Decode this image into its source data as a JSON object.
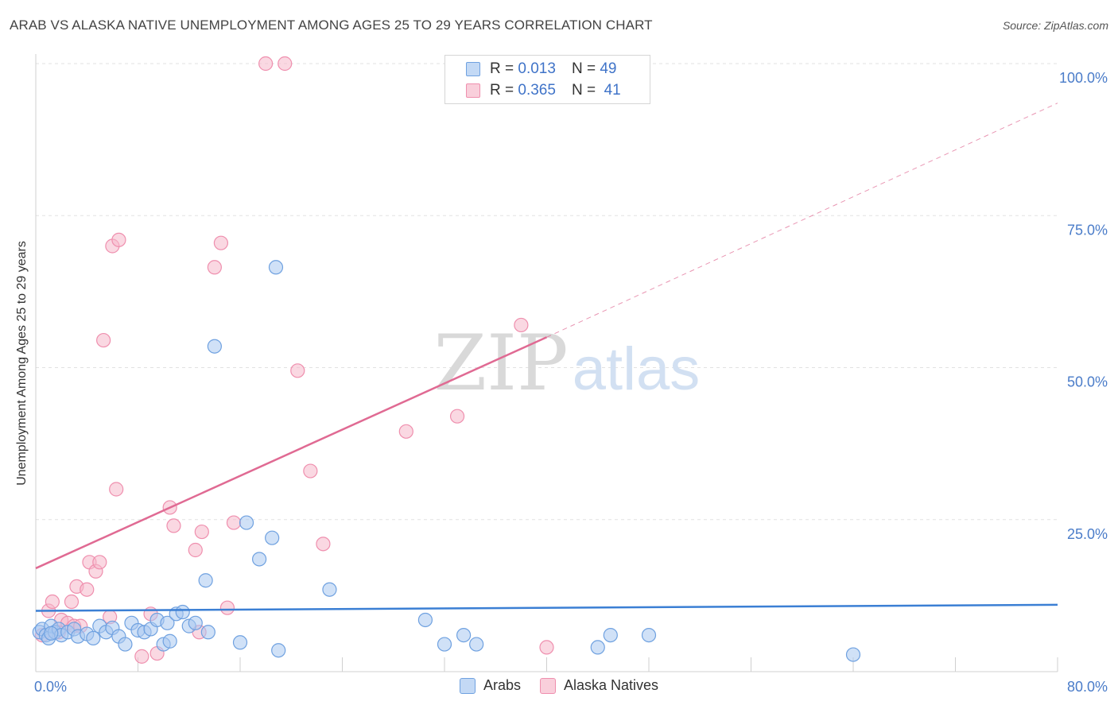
{
  "header": {
    "title": "ARAB VS ALASKA NATIVE UNEMPLOYMENT AMONG AGES 25 TO 29 YEARS CORRELATION CHART",
    "source": "Source: ZipAtlas.com"
  },
  "watermark": {
    "zip": "ZIP",
    "atlas": "atlas"
  },
  "legend": {
    "rows": [
      {
        "r_label": "R =",
        "r_value": "0.013",
        "n_label": "N =",
        "n_value": "49",
        "color": "#a9c8f0"
      },
      {
        "r_label": "R =",
        "r_value": "0.365",
        "n_label": "N =",
        "n_value": "41",
        "color": "#f6b8cb"
      }
    ]
  },
  "bottom_legend": {
    "items": [
      {
        "label": "Arabs",
        "color": "#a9c8f0"
      },
      {
        "label": "Alaska Natives",
        "color": "#f6b8cb"
      }
    ]
  },
  "chart_data": {
    "type": "scatter",
    "title": "ARAB VS ALASKA NATIVE UNEMPLOYMENT AMONG AGES 25 TO 29 YEARS CORRELATION CHART",
    "xlabel": "",
    "ylabel": "Unemployment Among Ages 25 to 29 years",
    "xlim": [
      0,
      80
    ],
    "ylim": [
      0,
      100
    ],
    "x_tick_labels": [
      "0.0%",
      "80.0%"
    ],
    "y_ticks": [
      25,
      50,
      75,
      100
    ],
    "y_tick_labels": [
      "25.0%",
      "50.0%",
      "75.0%",
      "100.0%"
    ],
    "grid": true,
    "legend_position": "top-center",
    "series": [
      {
        "name": "Arabs",
        "color": "#6fa1e0",
        "fill": "#a9c8f0",
        "trend": {
          "x": [
            0,
            80
          ],
          "y": [
            10.0,
            11.0
          ],
          "style": "solid",
          "color": "#3b7fd4"
        },
        "points": [
          [
            0.3,
            6.5
          ],
          [
            0.5,
            7.0
          ],
          [
            0.8,
            6.0
          ],
          [
            1.0,
            5.5
          ],
          [
            1.2,
            7.5
          ],
          [
            1.5,
            6.5
          ],
          [
            1.8,
            7.0
          ],
          [
            2.0,
            6.0
          ],
          [
            2.5,
            6.5
          ],
          [
            3.0,
            7.0
          ],
          [
            3.3,
            5.8
          ],
          [
            4.0,
            6.2
          ],
          [
            4.5,
            5.5
          ],
          [
            5.0,
            7.5
          ],
          [
            5.5,
            6.5
          ],
          [
            6.0,
            7.2
          ],
          [
            6.5,
            5.8
          ],
          [
            7.0,
            4.5
          ],
          [
            7.5,
            8.0
          ],
          [
            8.0,
            6.8
          ],
          [
            8.5,
            6.5
          ],
          [
            9.0,
            7.0
          ],
          [
            9.5,
            8.5
          ],
          [
            10.0,
            4.5
          ],
          [
            10.5,
            5.0
          ],
          [
            10.3,
            8.0
          ],
          [
            11.0,
            9.5
          ],
          [
            11.5,
            9.8
          ],
          [
            12.0,
            7.5
          ],
          [
            12.5,
            8.0
          ],
          [
            13.5,
            6.5
          ],
          [
            13.3,
            15.0
          ],
          [
            14.0,
            53.5
          ],
          [
            16.0,
            4.8
          ],
          [
            16.5,
            24.5
          ],
          [
            17.5,
            18.5
          ],
          [
            18.5,
            22.0
          ],
          [
            19.0,
            3.5
          ],
          [
            18.8,
            66.5
          ],
          [
            23.0,
            13.5
          ],
          [
            30.5,
            8.5
          ],
          [
            32.0,
            4.5
          ],
          [
            33.5,
            6.0
          ],
          [
            34.5,
            4.5
          ],
          [
            44.0,
            4.0
          ],
          [
            45.0,
            6.0
          ],
          [
            48.0,
            6.0
          ],
          [
            64.0,
            2.8
          ],
          [
            1.2,
            6.3
          ]
        ]
      },
      {
        "name": "Alaska Natives",
        "color": "#ef8fae",
        "fill": "#f6b8cb",
        "trend": {
          "x": [
            0,
            40,
            80
          ],
          "y": [
            17.0,
            55.0,
            93.5
          ],
          "style": "solid-then-dashed",
          "solid_until_x": 40,
          "color": "#e06a93"
        },
        "points": [
          [
            0.5,
            6.0
          ],
          [
            1.0,
            10.0
          ],
          [
            1.3,
            11.5
          ],
          [
            1.8,
            6.5
          ],
          [
            2.0,
            8.5
          ],
          [
            2.5,
            8.0
          ],
          [
            2.8,
            11.5
          ],
          [
            3.0,
            7.5
          ],
          [
            3.2,
            14.0
          ],
          [
            3.5,
            7.5
          ],
          [
            4.0,
            13.5
          ],
          [
            4.2,
            18.0
          ],
          [
            4.7,
            16.5
          ],
          [
            5.0,
            18.0
          ],
          [
            5.3,
            54.5
          ],
          [
            5.8,
            9.0
          ],
          [
            6.0,
            70.0
          ],
          [
            6.3,
            30.0
          ],
          [
            6.5,
            71.0
          ],
          [
            8.3,
            2.5
          ],
          [
            9.0,
            9.5
          ],
          [
            9.5,
            3.0
          ],
          [
            10.5,
            27.0
          ],
          [
            10.8,
            24.0
          ],
          [
            12.5,
            20.0
          ],
          [
            12.8,
            6.5
          ],
          [
            13.0,
            23.0
          ],
          [
            14.0,
            66.5
          ],
          [
            14.5,
            70.5
          ],
          [
            15.0,
            10.5
          ],
          [
            15.5,
            24.5
          ],
          [
            18.0,
            100.0
          ],
          [
            19.5,
            100.0
          ],
          [
            20.5,
            49.5
          ],
          [
            21.5,
            33.0
          ],
          [
            22.5,
            21.0
          ],
          [
            29.0,
            39.5
          ],
          [
            33.0,
            42.0
          ],
          [
            38.0,
            57.0
          ],
          [
            40.0,
            4.0
          ],
          [
            1.5,
            6.5
          ]
        ]
      }
    ]
  }
}
